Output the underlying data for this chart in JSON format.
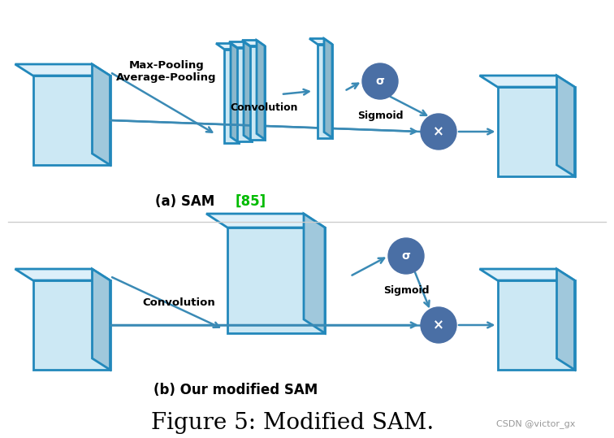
{
  "title": "Figure 5: Modified SAM.",
  "title_fontsize": 20,
  "bg_color": "#ffffff",
  "box_face_front": "#cce8f4",
  "box_face_top": "#ddf0fa",
  "box_face_right": "#a0c8dc",
  "box_edge_color": "#2288bb",
  "slab_face_front": "#cce8f4",
  "slab_face_top": "#ddf0fa",
  "slab_face_right": "#8cb8cc",
  "circle_color": "#4a6fa5",
  "arrow_color": "#3a8ab5",
  "label_a_text": "(a) SAM ",
  "label_a_ref": "[85]",
  "label_a_ref_color": "#00bb00",
  "label_b": "(b) Our modified SAM",
  "watermark": "CSDN @victor_gx",
  "watermark_color": "#999999",
  "text_convolution": "Convolution",
  "text_sigmoid": "Sigmoid",
  "text_maxpool": "Max-Pooling\nAverage-Pooling"
}
